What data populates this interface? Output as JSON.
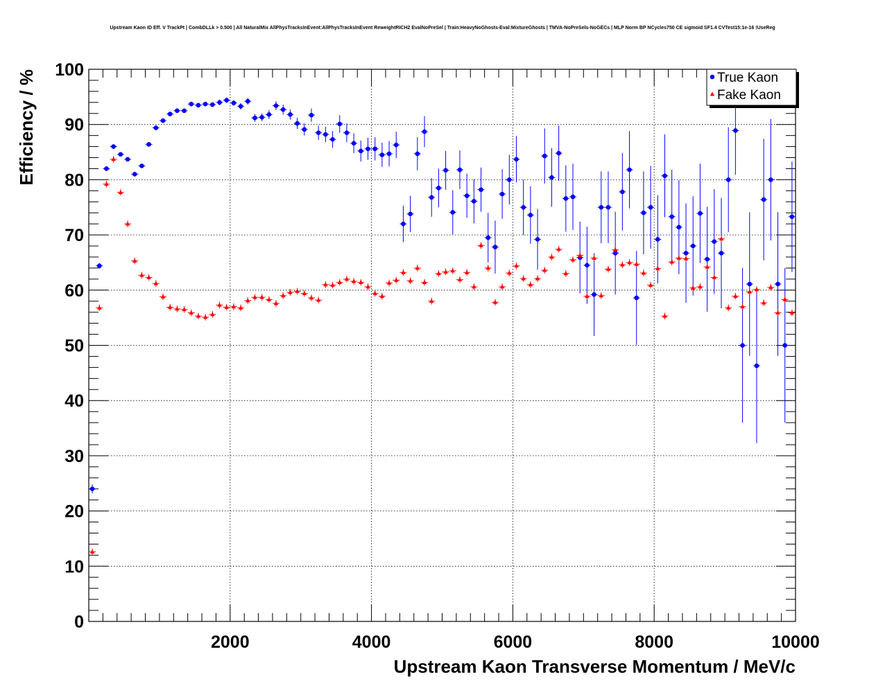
{
  "chart_data": {
    "type": "scatter",
    "title": "Upstream Kaon ID Eff. V TrackPt | CombDLLk > 0.500 | All NaturalMix AllPhysTracksInEvent:AllPhysTracksInEvent ReweightRICH2 EvalNoPreSel | Train:HeavyNoGhosts-Eval:MixtureGhosts | TMVA-NoPreSels-NoGECs | MLP Norm BP NCycles750 CE sigmoid SF1.4 CVTest15:1e-16 !UseReg",
    "xlabel": "Upstream Kaon Transverse Momentum / MeV/c",
    "ylabel": "Efficiency / %",
    "xlim": [
      0,
      10000
    ],
    "ylim": [
      0,
      100
    ],
    "x_ticks": [
      2000,
      4000,
      6000,
      8000,
      10000
    ],
    "x_tick_labels": [
      "2000",
      "4000",
      "6000",
      "8000",
      "10000"
    ],
    "y_ticks": [
      0,
      10,
      20,
      30,
      40,
      50,
      60,
      70,
      80,
      90,
      100
    ],
    "y_tick_labels": [
      "0",
      "10",
      "20",
      "30",
      "40",
      "50",
      "60",
      "70",
      "80",
      "90",
      "100"
    ],
    "grid": true,
    "legend": {
      "position": "top-right"
    },
    "series": [
      {
        "name": "True Kaon",
        "color": "#0000ff",
        "marker": "circle",
        "x": [
          50,
          150,
          250,
          350,
          450,
          550,
          650,
          750,
          850,
          950,
          1050,
          1150,
          1250,
          1350,
          1450,
          1550,
          1650,
          1750,
          1850,
          1950,
          2050,
          2150,
          2250,
          2350,
          2450,
          2550,
          2650,
          2750,
          2850,
          2950,
          3050,
          3150,
          3250,
          3350,
          3450,
          3550,
          3650,
          3750,
          3850,
          3950,
          4050,
          4150,
          4250,
          4350,
          4450,
          4550,
          4650,
          4750,
          4850,
          4950,
          5050,
          5150,
          5250,
          5350,
          5450,
          5550,
          5650,
          5750,
          5850,
          5950,
          6050,
          6150,
          6250,
          6350,
          6450,
          6550,
          6650,
          6750,
          6850,
          6950,
          7050,
          7150,
          7250,
          7350,
          7450,
          7550,
          7650,
          7750,
          7850,
          7950,
          8050,
          8150,
          8250,
          8350,
          8450,
          8550,
          8650,
          8750,
          8850,
          8950,
          9050,
          9150,
          9250,
          9350,
          9450,
          9550,
          9650,
          9750,
          9850,
          9950
        ],
        "y": [
          24.0,
          64.4,
          82.0,
          86.0,
          84.6,
          83.7,
          81.0,
          82.5,
          86.4,
          89.4,
          90.7,
          91.9,
          92.5,
          92.5,
          93.7,
          93.5,
          93.7,
          93.6,
          94.0,
          94.4,
          93.9,
          93.3,
          94.2,
          91.2,
          91.3,
          91.8,
          93.4,
          92.7,
          91.8,
          90.2,
          89.1,
          91.7,
          88.5,
          88.2,
          87.3,
          90.1,
          88.5,
          86.6,
          85.2,
          85.6,
          85.6,
          84.5,
          84.7,
          86.3,
          72.0,
          73.8,
          84.7,
          88.7,
          76.8,
          78.5,
          81.7,
          74.1,
          81.8,
          77.1,
          76.1,
          78.2,
          69.5,
          67.8,
          77.4,
          80.0,
          83.7,
          75.0,
          73.6,
          69.2,
          84.3,
          80.4,
          84.8,
          76.6,
          76.9,
          65.9,
          64.5,
          59.2,
          75.0,
          75.0,
          66.7,
          77.8,
          81.8,
          58.6,
          74.0,
          75.0,
          69.2,
          80.7,
          73.3,
          71.4,
          66.7,
          68.0,
          73.9,
          65.6,
          68.8,
          66.7,
          80.0,
          88.9,
          50.0,
          61.1,
          46.3,
          76.4,
          80.0,
          61.1,
          50.0,
          73.3
        ],
        "yerr": [
          0.8,
          0.5,
          0.4,
          0.4,
          0.4,
          0.4,
          0.4,
          0.4,
          0.4,
          0.4,
          0.4,
          0.4,
          0.4,
          0.4,
          0.4,
          0.4,
          0.4,
          0.4,
          0.5,
          0.5,
          0.5,
          0.6,
          0.6,
          0.7,
          0.7,
          0.8,
          0.8,
          0.9,
          0.9,
          1.0,
          1.1,
          1.2,
          1.3,
          1.4,
          1.5,
          1.6,
          1.7,
          1.8,
          1.9,
          2.0,
          2.1,
          2.2,
          2.3,
          2.4,
          3.3,
          3.3,
          3.0,
          2.8,
          3.5,
          3.5,
          3.5,
          4.0,
          3.5,
          4.0,
          4.0,
          4.0,
          4.5,
          4.8,
          4.5,
          4.5,
          4.2,
          5.0,
          5.2,
          5.5,
          5.0,
          5.3,
          5.0,
          6.0,
          6.0,
          6.5,
          7.0,
          7.5,
          6.5,
          6.5,
          7.5,
          7.0,
          7.0,
          8.5,
          7.5,
          7.5,
          8.0,
          7.5,
          8.5,
          8.5,
          9.0,
          9.0,
          9.0,
          9.5,
          9.5,
          10.0,
          9.5,
          8.0,
          14.0,
          13.0,
          14.0,
          11.0,
          11.0,
          13.0,
          14.0,
          10.0
        ]
      },
      {
        "name": "Fake Kaon",
        "color": "#ff0000",
        "marker": "triangle",
        "x": [
          50,
          150,
          250,
          350,
          450,
          550,
          650,
          750,
          850,
          950,
          1050,
          1150,
          1250,
          1350,
          1450,
          1550,
          1650,
          1750,
          1850,
          1950,
          2050,
          2150,
          2250,
          2350,
          2450,
          2550,
          2650,
          2750,
          2850,
          2950,
          3050,
          3150,
          3250,
          3350,
          3450,
          3550,
          3650,
          3750,
          3850,
          3950,
          4050,
          4150,
          4250,
          4350,
          4450,
          4550,
          4650,
          4750,
          4850,
          4950,
          5050,
          5150,
          5250,
          5350,
          5450,
          5550,
          5650,
          5750,
          5850,
          5950,
          6050,
          6150,
          6250,
          6350,
          6450,
          6550,
          6650,
          6750,
          6850,
          6950,
          7050,
          7150,
          7250,
          7350,
          7450,
          7550,
          7650,
          7750,
          7850,
          7950,
          8050,
          8150,
          8250,
          8350,
          8450,
          8550,
          8650,
          8750,
          8850,
          8950,
          9050,
          9150,
          9250,
          9350,
          9450,
          9550,
          9650,
          9750,
          9850,
          9950
        ],
        "y": [
          12.6,
          56.8,
          79.2,
          83.7,
          77.7,
          72.0,
          65.3,
          62.7,
          62.3,
          61.2,
          58.8,
          56.9,
          56.6,
          56.5,
          55.9,
          55.3,
          55.1,
          55.6,
          57.3,
          56.9,
          57.0,
          56.8,
          58.1,
          58.7,
          58.7,
          58.3,
          57.6,
          59.0,
          59.6,
          59.8,
          59.4,
          58.6,
          58.2,
          61.0,
          60.9,
          61.4,
          62.0,
          61.6,
          61.4,
          60.6,
          59.4,
          58.9,
          61.3,
          61.8,
          63.2,
          61.7,
          64.0,
          61.4,
          58.0,
          63.0,
          63.3,
          63.5,
          61.9,
          63.2,
          60.6,
          68.1,
          64.0,
          57.8,
          60.6,
          63.1,
          64.4,
          62.1,
          61.0,
          62.1,
          63.6,
          66.0,
          67.4,
          63.0,
          65.5,
          66.3,
          58.9,
          65.8,
          59.0,
          63.8,
          67.3,
          64.6,
          65.0,
          64.7,
          63.1,
          60.9,
          63.9,
          55.3,
          65.1,
          65.8,
          65.7,
          60.4,
          60.6,
          64.2,
          62.3,
          69.3,
          56.8,
          58.9,
          57.0,
          59.7,
          60.1,
          57.7,
          60.5,
          55.9,
          58.3,
          55.9
        ]
      }
    ]
  }
}
